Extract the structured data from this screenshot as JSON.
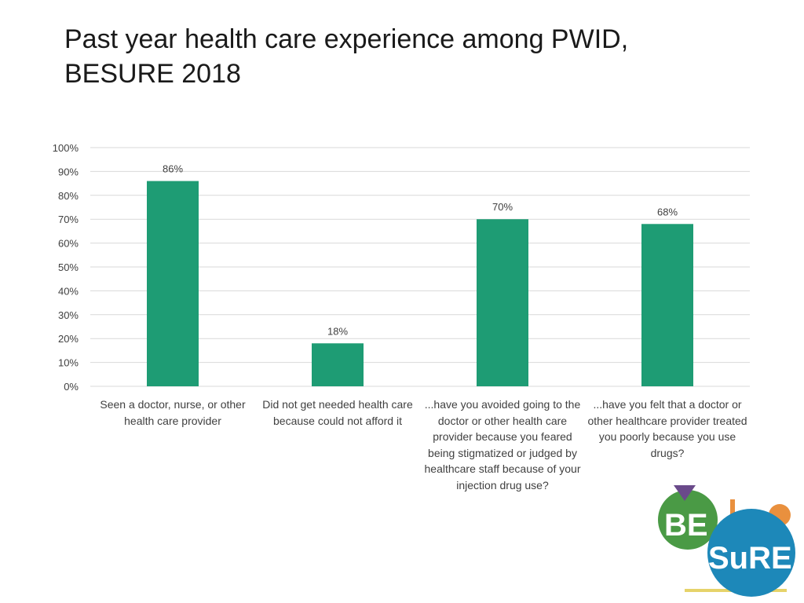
{
  "slide": {
    "title": "Past year health care experience among PWID, BESURE 2018"
  },
  "chart_data": {
    "type": "bar",
    "title": "",
    "xlabel": "",
    "ylabel": "",
    "ylim": [
      0,
      100
    ],
    "ytick_step": 10,
    "ytick_suffix": "%",
    "grid": true,
    "legend": "none",
    "categories": [
      "Seen a doctor, nurse, or other health care provider",
      "Did not get needed health care because could not afford it",
      "...have you avoided going to the doctor or other health care provider because you feared being stigmatized or judged by healthcare staff because of your injection drug use?",
      "...have you felt that a doctor or other healthcare provider treated you poorly because you use drugs?"
    ],
    "values": [
      86,
      18,
      70,
      68
    ],
    "data_labels": [
      "86%",
      "18%",
      "70%",
      "68%"
    ],
    "bar_color": "#1e9c74"
  },
  "logo": {
    "part1": "BE",
    "part2": "SuRE",
    "colors": {
      "green": "#4a9a45",
      "blue": "#1d88b9",
      "orange": "#e9903e",
      "purple": "#6a4a8a",
      "yellow": "#e6d36a"
    }
  }
}
